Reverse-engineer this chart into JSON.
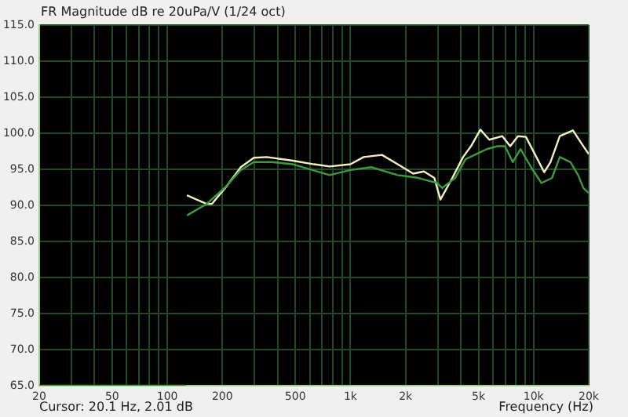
{
  "chart_data": {
    "type": "line",
    "title": "FR Magnitude dB re 20uPa/V (1/24 oct)",
    "xlabel": "Frequency (Hz)",
    "annotations": [
      "Cursor: 20.1 Hz, 2.01 dB"
    ],
    "log": "x",
    "grid": true,
    "legend": false,
    "marker": "none",
    "line_style": "solid",
    "xlim": [
      20,
      20000
    ],
    "ylim": [
      65,
      115
    ],
    "xticks": [
      20,
      {
        "value": 30,
        "label": null
      },
      {
        "value": 40,
        "label": null
      },
      50,
      {
        "value": 60,
        "label": null
      },
      {
        "value": 70,
        "label": null
      },
      {
        "value": 80,
        "label": null
      },
      {
        "value": 90,
        "label": null
      },
      100,
      200,
      {
        "value": 300,
        "label": null
      },
      {
        "value": 400,
        "label": null
      },
      500,
      {
        "value": 600,
        "label": null
      },
      {
        "value": 700,
        "label": null
      },
      {
        "value": 800,
        "label": null
      },
      {
        "value": 900,
        "label": null
      },
      {
        "value": 1000,
        "label": "1k"
      },
      {
        "value": 2000,
        "label": "2k"
      },
      {
        "value": 3000,
        "label": null
      },
      {
        "value": 4000,
        "label": null
      },
      {
        "value": 5000,
        "label": "5k"
      },
      {
        "value": 6000,
        "label": null
      },
      {
        "value": 7000,
        "label": null
      },
      {
        "value": 8000,
        "label": null
      },
      {
        "value": 9000,
        "label": null
      },
      {
        "value": 10000,
        "label": "10k"
      },
      {
        "value": 20000,
        "label": "20k"
      }
    ],
    "yticks": [
      {
        "value": 65,
        "label": "65.0"
      },
      {
        "value": 70,
        "label": "70.0"
      },
      {
        "value": 75,
        "label": "75.0"
      },
      {
        "value": 80,
        "label": "80.0"
      },
      {
        "value": 85,
        "label": "85.0"
      },
      {
        "value": 90,
        "label": "90.0"
      },
      {
        "value": 95,
        "label": "95.0"
      },
      {
        "value": 100,
        "label": "100.0"
      },
      {
        "value": 105,
        "label": "105.0"
      },
      {
        "value": 110,
        "label": "110.0"
      },
      {
        "value": 115,
        "label": "115.0"
      }
    ],
    "series": [
      {
        "color": "#7a6a2a",
        "x": [
          20,
          126
        ],
        "values": [
          65,
          65
        ]
      },
      {
        "color": "#3f9a3f",
        "x": [
          128,
          164,
          207,
          252,
          297,
          373,
          485,
          770,
          1000,
          1300,
          1810,
          2350,
          2970,
          3170,
          3730,
          4250,
          4860,
          5550,
          6320,
          6980,
          7690,
          8490,
          9680,
          11030,
          12600,
          13900,
          15900,
          17500,
          18700,
          20000
        ],
        "values": [
          88.6,
          90.2,
          92.5,
          94.9,
          96.0,
          96.0,
          95.7,
          94.2,
          94.9,
          95.3,
          94.2,
          93.8,
          93.1,
          92.4,
          93.8,
          96.4,
          97.1,
          97.8,
          98.2,
          98.2,
          96.0,
          97.8,
          95.3,
          93.1,
          93.8,
          96.7,
          96.0,
          94.2,
          92.4,
          91.7
        ]
      },
      {
        "color": "#f2f0c0",
        "x": [
          128,
          164,
          175,
          207,
          252,
          297,
          350,
          485,
          632,
          770,
          1000,
          1180,
          1486,
          1810,
          2200,
          2520,
          2870,
          3100,
          3600,
          4120,
          4550,
          5120,
          5730,
          6750,
          7450,
          8220,
          9080,
          10350,
          11430,
          12360,
          13900,
          16400,
          18700,
          20000
        ],
        "values": [
          91.4,
          90.2,
          90.2,
          92.4,
          95.3,
          96.6,
          96.7,
          96.2,
          95.7,
          95.4,
          95.7,
          96.7,
          97.0,
          95.7,
          94.4,
          94.7,
          93.8,
          90.8,
          93.8,
          96.7,
          98.2,
          100.5,
          99.1,
          99.6,
          98.2,
          99.6,
          99.5,
          96.7,
          94.6,
          96.0,
          99.6,
          100.4,
          98.2,
          97.1
        ]
      }
    ]
  }
}
